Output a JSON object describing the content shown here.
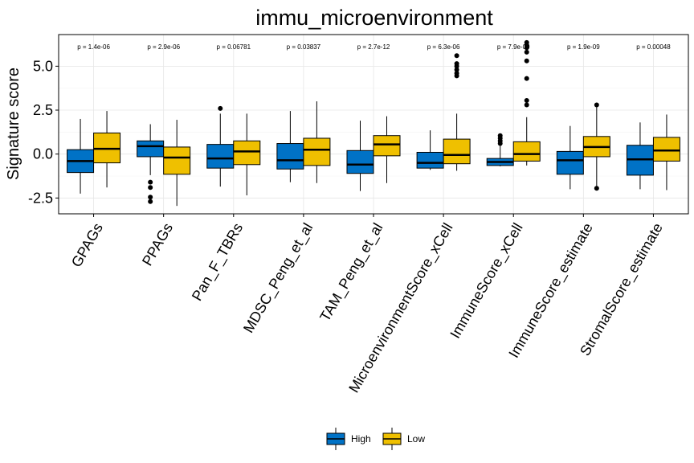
{
  "chart_data": {
    "type": "box",
    "title": "immu_microenvironment",
    "xlabel": "",
    "ylabel": "Signature score",
    "ylim": [
      -3.4,
      6.8
    ],
    "yticks": [
      -2.5,
      0.0,
      2.5,
      5.0
    ],
    "ytick_labels": [
      "-2.5",
      "0.0",
      "2.5",
      "5.0"
    ],
    "grid": true,
    "legend_position": "bottom",
    "categories": [
      "GPAGs",
      "PPAGs",
      "Pan_F_TBRs",
      "MDSC_Peng_et_al",
      "TAM_Peng_et_al",
      "MicroenvironmentScore_xCell",
      "ImmuneScore_xCell",
      "ImmuneScore_estimate",
      "StromalScore_estimate"
    ],
    "p_values": [
      "p = 1.4e-06",
      "p = 2.9e-06",
      "p = 0.06781",
      "p = 0.03837",
      "p = 2.7e-12",
      "p = 6.3e-06",
      "p = 7.9e-09",
      "p = 1.9e-09",
      "p = 0.00048"
    ],
    "series": [
      {
        "name": "High",
        "color": "#0072C6",
        "boxes": [
          {
            "whislo": -2.25,
            "q1": -1.05,
            "med": -0.4,
            "q3": 0.25,
            "whishi": 2.0,
            "fliers": []
          },
          {
            "whislo": -1.2,
            "q1": -0.15,
            "med": 0.45,
            "q3": 0.75,
            "whishi": 1.7,
            "fliers": [
              -1.6,
              -1.9,
              -2.45,
              -2.7
            ]
          },
          {
            "whislo": -1.85,
            "q1": -0.8,
            "med": -0.25,
            "q3": 0.55,
            "whishi": 2.3,
            "fliers": [
              2.6
            ]
          },
          {
            "whislo": -1.6,
            "q1": -0.85,
            "med": -0.35,
            "q3": 0.6,
            "whishi": 2.45,
            "fliers": []
          },
          {
            "whislo": -2.1,
            "q1": -1.1,
            "med": -0.6,
            "q3": 0.2,
            "whishi": 1.9,
            "fliers": []
          },
          {
            "whislo": -0.9,
            "q1": -0.8,
            "med": -0.5,
            "q3": 0.1,
            "whishi": 1.35,
            "fliers": []
          },
          {
            "whislo": -0.7,
            "q1": -0.65,
            "med": -0.45,
            "q3": -0.25,
            "whishi": 0.6,
            "fliers": [
              0.6,
              0.75,
              0.9,
              1.05
            ]
          },
          {
            "whislo": -2.0,
            "q1": -1.15,
            "med": -0.35,
            "q3": 0.15,
            "whishi": 1.6,
            "fliers": []
          },
          {
            "whislo": -2.0,
            "q1": -1.2,
            "med": -0.3,
            "q3": 0.5,
            "whishi": 1.8,
            "fliers": []
          }
        ]
      },
      {
        "name": "Low",
        "color": "#EFC000",
        "boxes": [
          {
            "whislo": -1.9,
            "q1": -0.5,
            "med": 0.3,
            "q3": 1.2,
            "whishi": 2.45,
            "fliers": []
          },
          {
            "whislo": -2.95,
            "q1": -1.15,
            "med": -0.2,
            "q3": 0.4,
            "whishi": 1.95,
            "fliers": []
          },
          {
            "whislo": -2.35,
            "q1": -0.6,
            "med": 0.15,
            "q3": 0.75,
            "whishi": 2.3,
            "fliers": []
          },
          {
            "whislo": -1.65,
            "q1": -0.65,
            "med": 0.25,
            "q3": 0.9,
            "whishi": 3.0,
            "fliers": []
          },
          {
            "whislo": -1.65,
            "q1": -0.1,
            "med": 0.55,
            "q3": 1.05,
            "whishi": 2.15,
            "fliers": []
          },
          {
            "whislo": -0.95,
            "q1": -0.55,
            "med": -0.05,
            "q3": 0.85,
            "whishi": 2.3,
            "fliers": [
              4.45,
              4.6,
              4.8,
              5.0,
              5.15,
              5.6
            ]
          },
          {
            "whislo": -0.65,
            "q1": -0.4,
            "med": 0.0,
            "q3": 0.7,
            "whishi": 2.1,
            "fliers": [
              2.8,
              3.05,
              4.3,
              5.3,
              5.8,
              6.05,
              6.2,
              6.35
            ]
          },
          {
            "whislo": -1.95,
            "q1": -0.15,
            "med": 0.4,
            "q3": 1.0,
            "whishi": 2.75,
            "fliers": [
              -1.95,
              2.8
            ]
          },
          {
            "whislo": -2.05,
            "q1": -0.4,
            "med": 0.2,
            "q3": 0.95,
            "whishi": 2.25,
            "fliers": []
          }
        ]
      }
    ]
  }
}
